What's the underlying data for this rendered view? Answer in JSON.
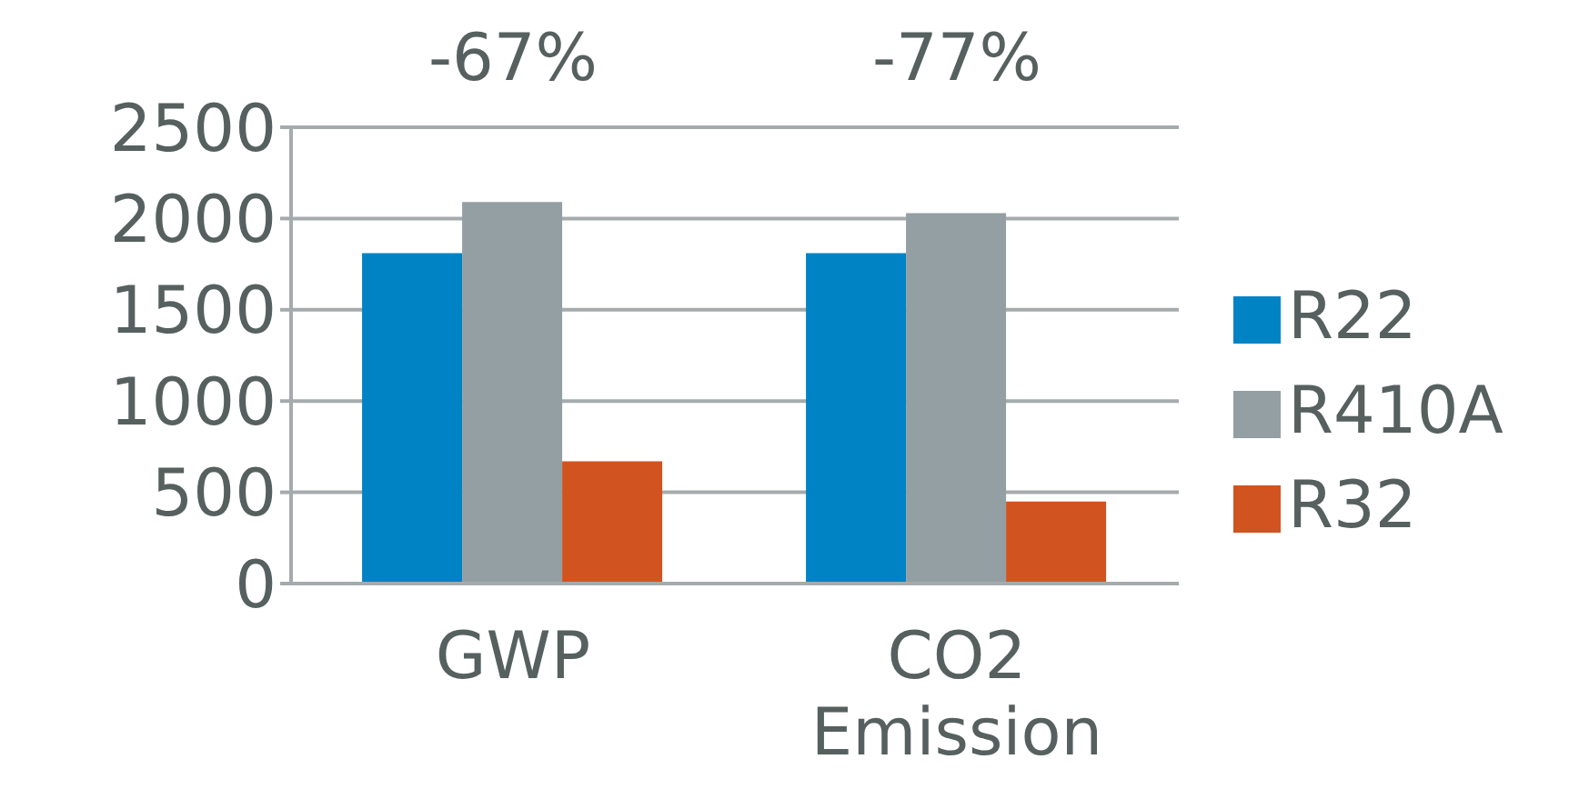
{
  "chart_data": {
    "type": "bar",
    "categories": [
      "GWP",
      "CO2 Emission"
    ],
    "series": [
      {
        "name": "R22",
        "color": "#0083c4",
        "values": [
          1810,
          1810
        ]
      },
      {
        "name": "R410A",
        "color": "#939fa2",
        "values": [
          2090,
          2030
        ]
      },
      {
        "name": "R32",
        "color": "#d15320",
        "values": [
          670,
          450
        ]
      }
    ],
    "ylim": [
      0,
      2500
    ],
    "yticks": [
      0,
      500,
      1000,
      1500,
      2000,
      2500
    ],
    "grid": "y",
    "legend": "right",
    "annotations": [
      "-67%",
      "-77%"
    ]
  }
}
